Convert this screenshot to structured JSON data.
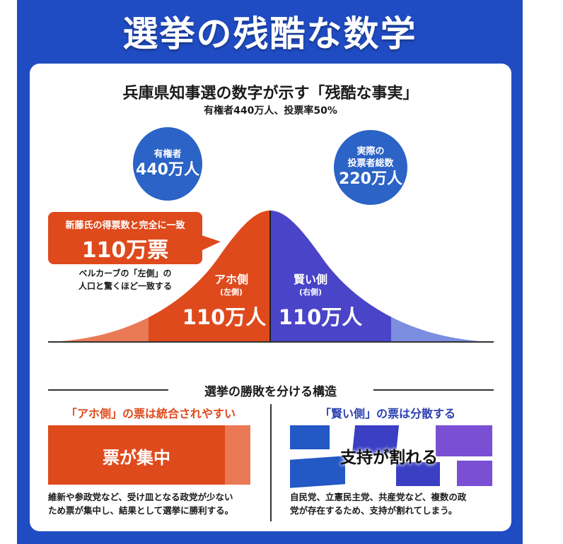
{
  "title": "選挙の残酷な数学",
  "card": {
    "heading": "兵庫県知事選の数字が示す「残酷な事実」",
    "subheading": "有権者440万人、投票率50%",
    "circle_left": {
      "label": "有権者",
      "value": "440万人"
    },
    "circle_right": {
      "label1": "実際の",
      "label2": "投票者総数",
      "value": "220万人"
    },
    "callout": {
      "label": "新藤氏の得票数と完全に一致",
      "value": "110万票"
    },
    "note1": "ベルカーブの「左側」の",
    "note2": "人口と驚くほど一致する",
    "left_side": {
      "name": "アホ側",
      "sub": "(左側)",
      "value": "110万人"
    },
    "right_side": {
      "name": "賢い側",
      "sub": "(右側)",
      "value": "110万人"
    },
    "section_title": "選挙の勝敗を分ける構造",
    "left_panel": {
      "title": "「アホ側」の票は統合されやすい",
      "box": "票が集中",
      "desc1": "維新や参政党など、受け皿となる政党が少ない",
      "desc2": "ため票が集中し、結果として選挙に勝利する。"
    },
    "right_panel": {
      "title": "「賢い側」の票は分散する",
      "box": "支持が割れる",
      "desc1": "自民党、立憲民主党、共産党など、複数の政",
      "desc2": "党が存在するため、支持が割れてしまう。"
    }
  },
  "colors": {
    "blue_bg": "#1f4cc2",
    "orange": "#df4a1c",
    "purple_blue": "#4a44c8"
  }
}
